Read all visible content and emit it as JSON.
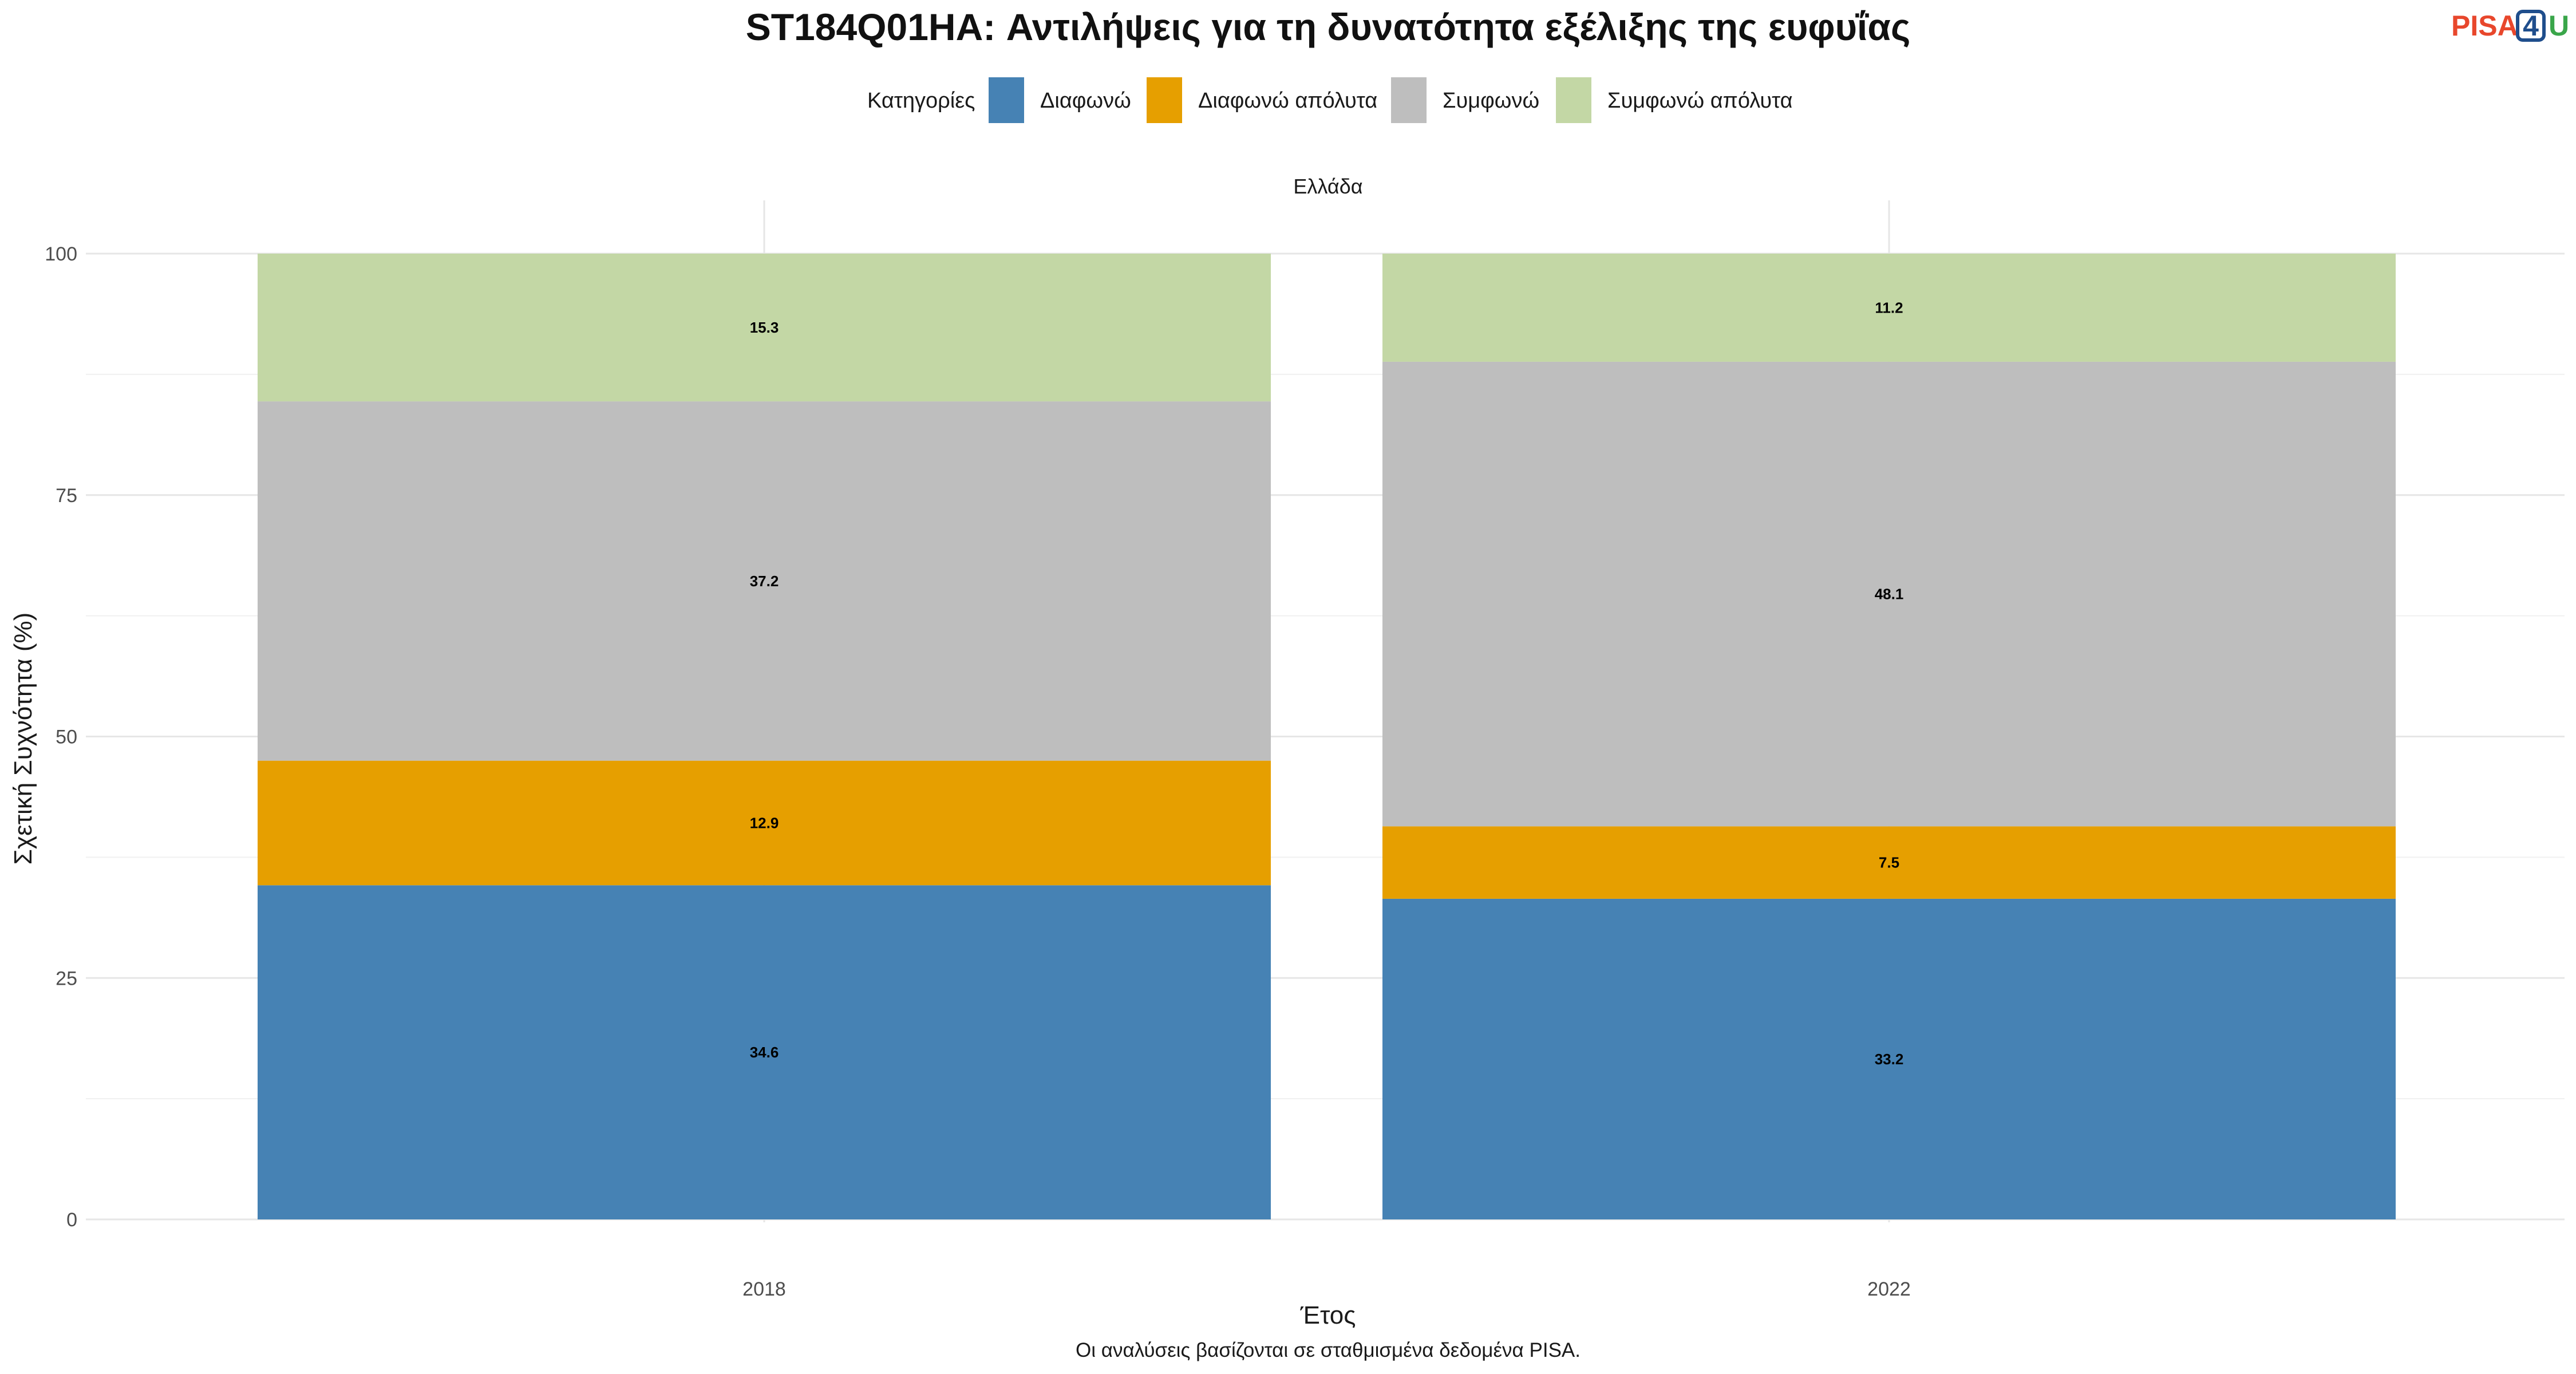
{
  "logo": {
    "text_part1": "PISA",
    "text_part2": "4",
    "text_part3": "U",
    "colors": [
      "#e8472c",
      "#1f4e8c",
      "#3aa64a"
    ]
  },
  "chart_data": {
    "type": "bar",
    "stacked": true,
    "title": "ST184Q01HA: Αντιλήψεις για τη δυνατότητα εξέλιξης της ευφυΐας",
    "facet": "Ελλάδα",
    "xlabel": "Έτος",
    "ylabel": "Σχετική Συχνότητα (%)",
    "caption": "Οι αναλύσεις βασίζονται σε σταθμισμένα δεδομένα PISA.",
    "legend_title": "Κατηγορίες",
    "legend_position": "top",
    "ylim": [
      0,
      100
    ],
    "yticks": [
      0,
      25,
      50,
      75,
      100
    ],
    "grid": true,
    "categories": [
      "2018",
      "2022"
    ],
    "series": [
      {
        "name": "Διαφωνώ",
        "color": "#4682b4",
        "values": [
          34.6,
          33.2
        ]
      },
      {
        "name": "Διαφωνώ απόλυτα",
        "color": "#e69f00",
        "values": [
          12.9,
          7.5
        ]
      },
      {
        "name": "Συμφωνώ",
        "color": "#bebebe",
        "values": [
          37.2,
          48.1
        ]
      },
      {
        "name": "Συμφωνώ απόλυτα",
        "color": "#c3d7a5",
        "values": [
          15.3,
          11.2
        ]
      }
    ]
  }
}
